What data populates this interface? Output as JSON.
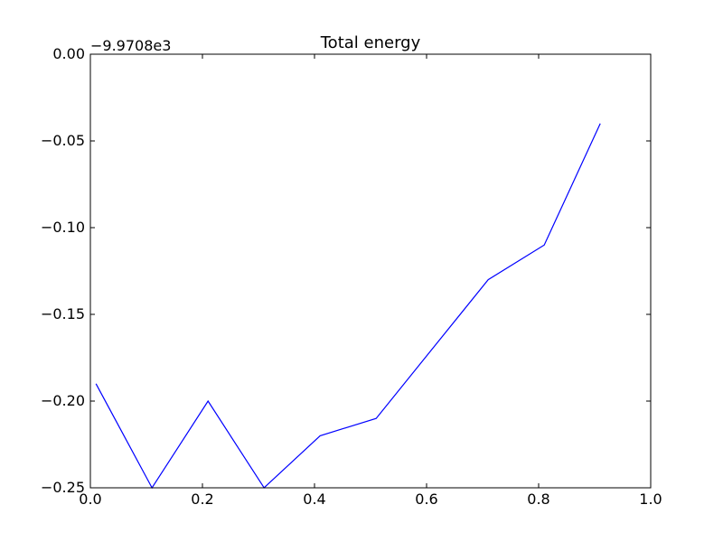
{
  "chart_data": {
    "type": "line",
    "title": "Total energy",
    "xlabel": "",
    "ylabel": "",
    "y_offset_label": "−9.9708e3",
    "xlim": [
      0.0,
      1.0
    ],
    "ylim": [
      -0.25,
      0.0
    ],
    "x_ticks": [
      0.0,
      0.2,
      0.4,
      0.6,
      0.8,
      1.0
    ],
    "x_tick_labels": [
      "0.0",
      "0.2",
      "0.4",
      "0.6",
      "0.8",
      "1.0"
    ],
    "y_ticks": [
      0.0,
      -0.05,
      -0.1,
      -0.15,
      -0.2,
      -0.25
    ],
    "y_tick_labels": [
      "0.00",
      "−0.05",
      "−0.10",
      "−0.15",
      "−0.20",
      "−0.25"
    ],
    "grid": false,
    "series": [
      {
        "color": "#0000ff",
        "x": [
          0.01,
          0.11,
          0.21,
          0.31,
          0.41,
          0.51,
          0.61,
          0.71,
          0.81,
          0.91
        ],
        "y": [
          -0.19,
          -0.25,
          -0.2,
          -0.25,
          -0.22,
          -0.21,
          -0.17,
          -0.13,
          -0.11,
          -0.04
        ]
      }
    ]
  }
}
